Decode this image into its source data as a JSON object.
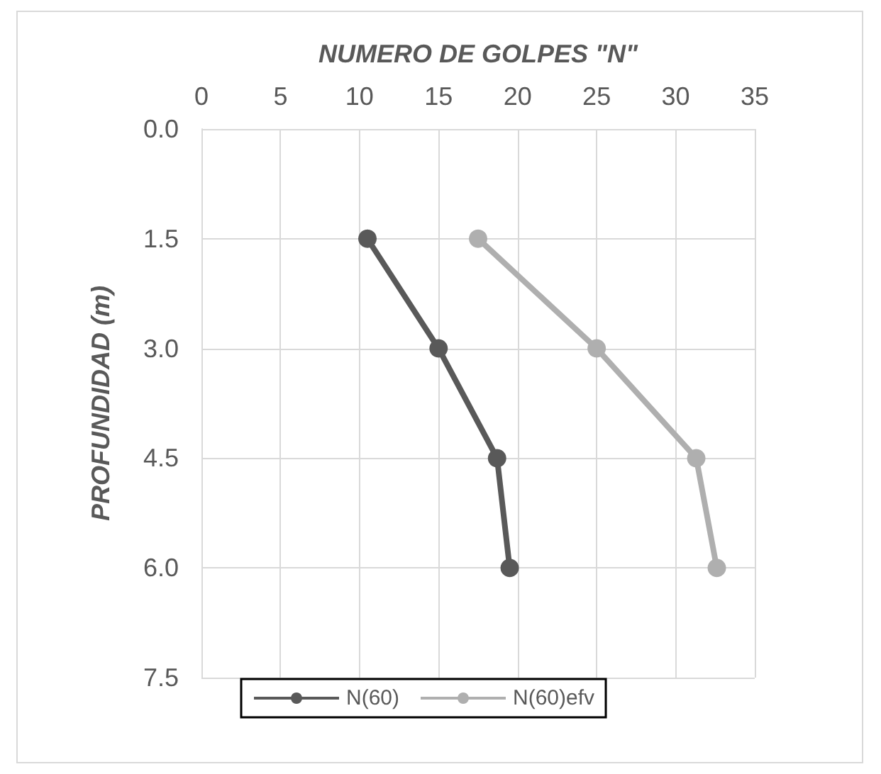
{
  "chart_data": {
    "type": "line",
    "xlabel": "NUMERO DE GOLPES \"N\"",
    "ylabel": "PROFUNDIDAD (m)",
    "xlim": [
      0,
      35
    ],
    "xticks": [
      0,
      5,
      10,
      15,
      20,
      25,
      30,
      35
    ],
    "ylim": [
      7.5,
      0
    ],
    "yticks": [
      {
        "value": 0,
        "label": "0.0"
      },
      {
        "value": 1.5,
        "label": "1.5"
      },
      {
        "value": 3,
        "label": "3.0"
      },
      {
        "value": 4.5,
        "label": "4.5"
      },
      {
        "value": 6,
        "label": "6.0"
      },
      {
        "value": 7.5,
        "label": "7.5"
      }
    ],
    "series": [
      {
        "name": "N(60)",
        "color": "#595959",
        "x": [
          10.5,
          15,
          18.7,
          19.5
        ],
        "values": [
          1.5,
          3,
          4.5,
          6
        ]
      },
      {
        "name": "N(60)efv",
        "color": "#afafaf",
        "x": [
          17.5,
          25,
          31.3,
          32.6
        ],
        "values": [
          1.5,
          3,
          4.5,
          6
        ]
      }
    ],
    "grid": true,
    "legend": "bottom",
    "marker": "circle",
    "line_style": "solid"
  }
}
